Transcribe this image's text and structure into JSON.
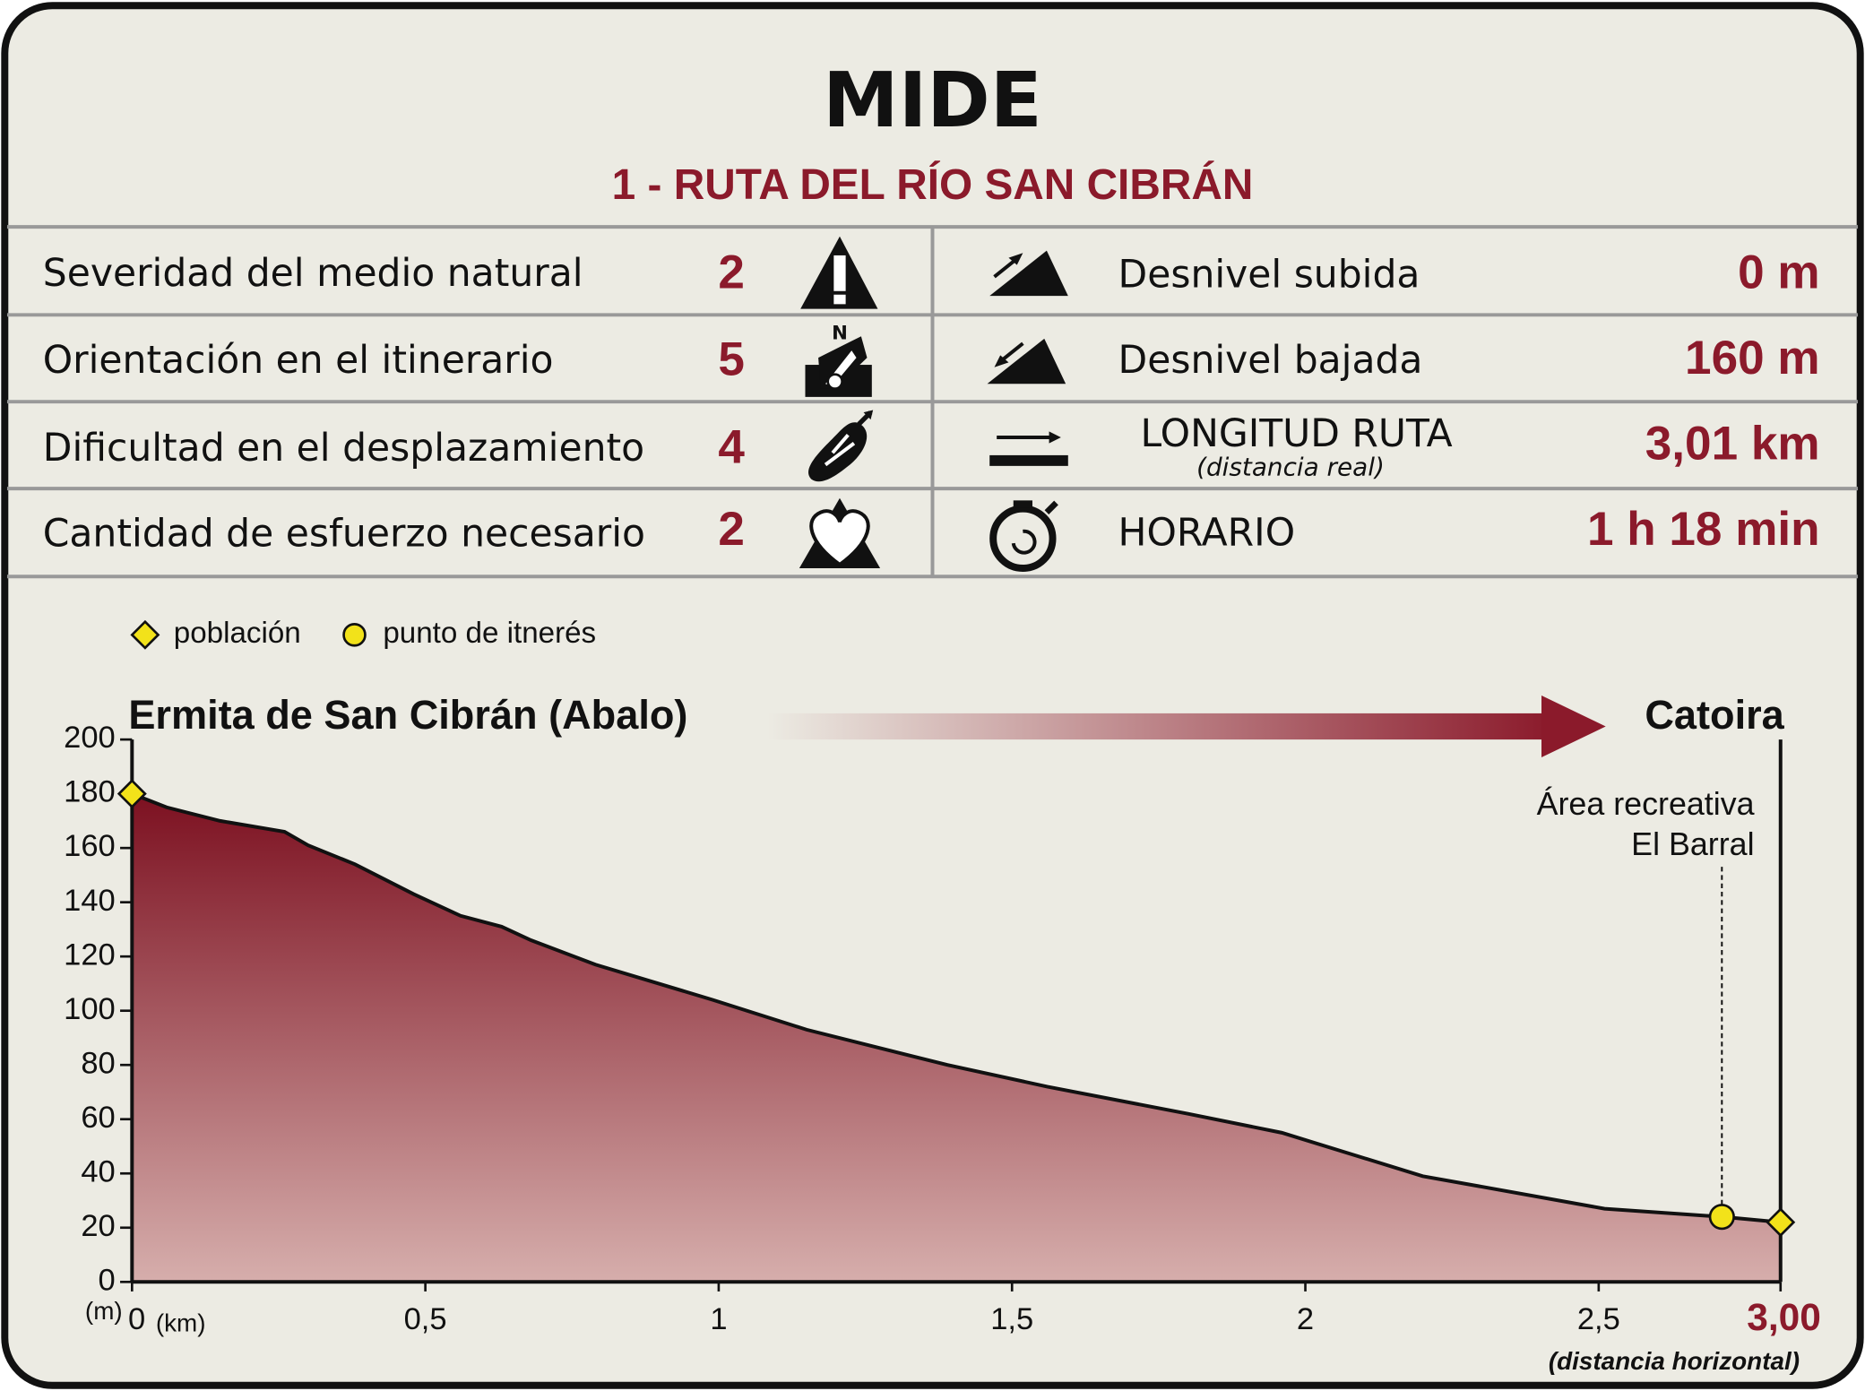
{
  "header": {
    "title": "MIDE",
    "subtitle": "1 - RUTA DEL RÍO SAN CIBRÁN"
  },
  "mide": [
    {
      "label": "Severidad del medio natural",
      "value": 2
    },
    {
      "label": "Orientación en el itinerario",
      "value": 5
    },
    {
      "label": "Dificultad en el desplazamiento",
      "value": 4
    },
    {
      "label": "Cantidad de esfuerzo necesario",
      "value": 2
    }
  ],
  "route": [
    {
      "label": "Desnivel subida",
      "value": "0 m"
    },
    {
      "label": "Desnivel bajada",
      "value": "160 m"
    },
    {
      "label": "LONGITUD RUTA",
      "sublabel": "(distancia real)",
      "value": "3,01 km"
    },
    {
      "label": "HORARIO",
      "value": "1 h 18 min"
    }
  ],
  "chart_data": {
    "type": "area",
    "color": "#7c1020",
    "x": [
      0,
      0.059,
      0.15,
      0.26,
      0.3,
      0.38,
      0.48,
      0.56,
      0.63,
      0.68,
      0.79,
      0.99,
      1.15,
      1.39,
      1.56,
      1.8,
      1.96,
      2.2,
      2.51,
      2.71,
      2.81
    ],
    "values": [
      180,
      175,
      170,
      166,
      161,
      154,
      143,
      135,
      131,
      126,
      117,
      104,
      93,
      80,
      72,
      62,
      55,
      39,
      27,
      24,
      22
    ],
    "xlim": [
      0,
      2.81
    ],
    "ylim": [
      0,
      200
    ],
    "xticks": [
      0,
      {
        "value": 0.5,
        "label": "0,5"
      },
      1,
      {
        "value": 1.5,
        "label": "1,5"
      },
      2,
      {
        "value": 2.5,
        "label": "2,5"
      }
    ],
    "yticks": [
      0,
      20,
      40,
      60,
      80,
      100,
      120,
      140,
      160,
      180,
      200
    ],
    "x_end_label": "3,00",
    "x_unit": "(km)",
    "y_unit": "(m)",
    "x_note": "(distancia horizontal)",
    "start_label": "Ermita de San Cibrán (Abalo)",
    "end_label": "Catoira",
    "legend": [
      {
        "label": "población",
        "shape": "diamond"
      },
      {
        "label": "punto de itnerés",
        "shape": "circle"
      }
    ],
    "points": [
      {
        "x": 0,
        "y": 180,
        "shape": "diamond"
      },
      {
        "x": 2.71,
        "y": 24,
        "shape": "circle",
        "label": [
          "Área recreativa",
          "El Barral"
        ]
      },
      {
        "x": 2.81,
        "y": 22,
        "shape": "diamond"
      }
    ]
  }
}
